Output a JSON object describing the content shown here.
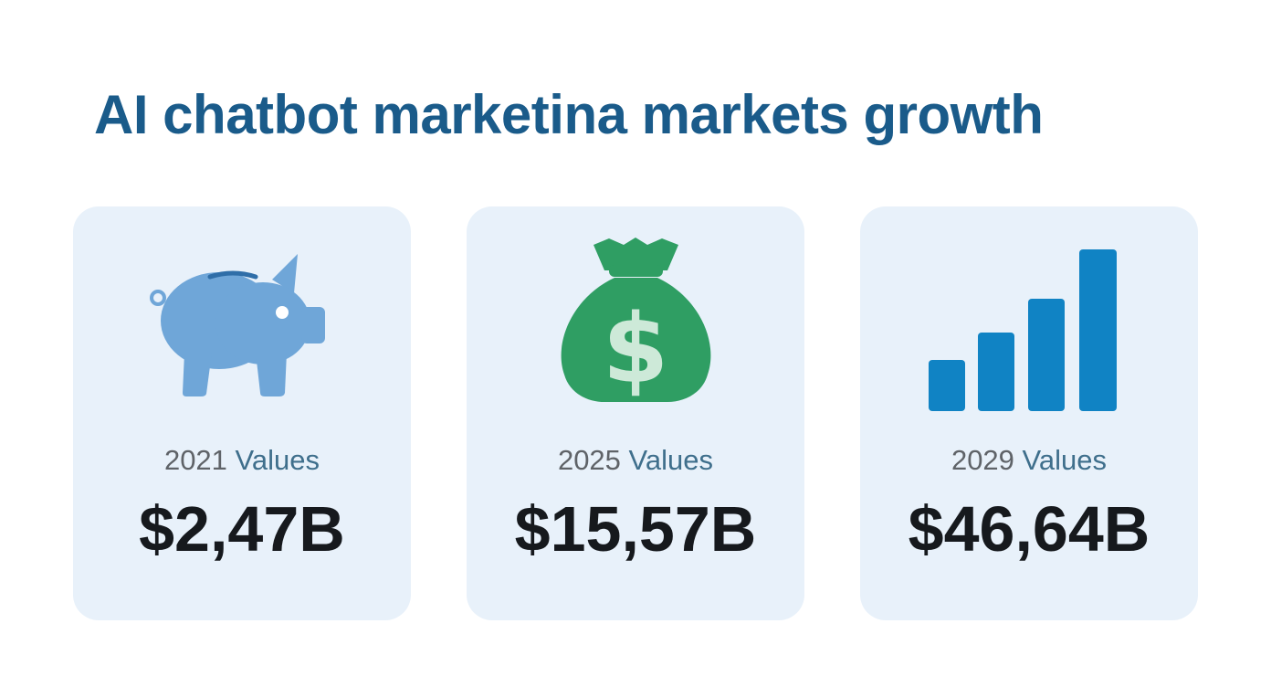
{
  "header": {
    "title": "AI chatbot marketina markets growth"
  },
  "colors": {
    "title": "#1a5b8a",
    "card_background": "#e8f1fa",
    "label_year": "#5f6368",
    "label_word": "#3f6f8c",
    "value_text": "#16191d",
    "piggy_bank": "#6fa6d8",
    "money_bag": "#2f9e63",
    "dollar_sign": "#cde9d8",
    "bar_chart": "#1083c4"
  },
  "cards": [
    {
      "icon": "piggy-bank-icon",
      "year": "2021",
      "label_word": "Values",
      "value": "$2,47B"
    },
    {
      "icon": "money-bag-icon",
      "year": "2025",
      "label_word": "Values",
      "value": "$15,57B"
    },
    {
      "icon": "bar-chart-icon",
      "year": "2029",
      "label_word": "Values",
      "value": "$46,64B"
    }
  ]
}
